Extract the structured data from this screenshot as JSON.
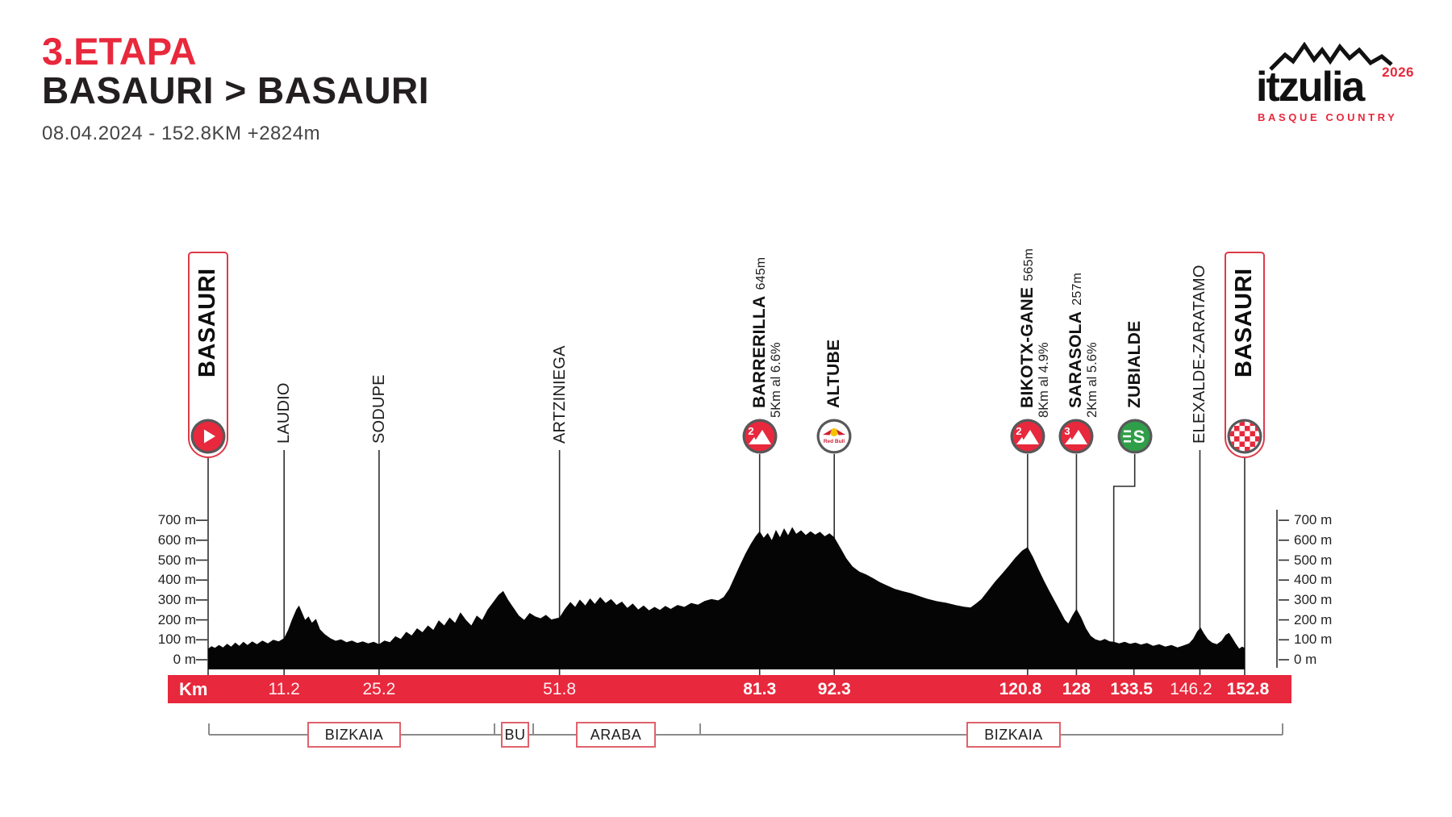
{
  "header": {
    "stage": "3.ETAPA",
    "route": "BASAURI &gt; BASAURI",
    "route_plain": "BASAURI > BASAURI",
    "details": "08.04.2024 - 152.8KM  +2824m"
  },
  "logo": {
    "name": "itzulia",
    "year": "2026",
    "subtitle": "BASQUE COUNTRY"
  },
  "colors": {
    "accent_red": "#e8283c",
    "box_border_red": "#e0626c",
    "sprint_green": "#2f9e48",
    "ring_gray": "#57585a",
    "feed_yellow": "#f6c200",
    "profile_black": "#050505",
    "line_gray": "#2e2e2e",
    "region_gray": "#8c8c8c"
  },
  "axis": {
    "elevation_labels": [
      "700 m",
      "600 m",
      "500 m",
      "400 m",
      "300 m",
      "200 m",
      "100 m",
      "0 m"
    ],
    "elevation_values": [
      700,
      600,
      500,
      400,
      300,
      200,
      100,
      0
    ],
    "km_unit_label": "Km"
  },
  "km_axis": {
    "ticks": [
      {
        "label": "11.2",
        "km": 11.2,
        "major": false,
        "dx": 0
      },
      {
        "label": "25.2",
        "km": 25.2,
        "major": false,
        "dx": 0
      },
      {
        "label": "51.8",
        "km": 51.8,
        "major": false,
        "dx": 0
      },
      {
        "label": "81.3",
        "km": 81.3,
        "major": true,
        "dx": 0
      },
      {
        "label": "92.3",
        "km": 92.3,
        "major": true,
        "dx": 0
      },
      {
        "label": "120.8",
        "km": 120.8,
        "major": true,
        "dx": -9
      },
      {
        "label": "128",
        "km": 128,
        "major": true,
        "dx": 0
      },
      {
        "label": "133.5",
        "km": 133.5,
        "major": true,
        "dx": 22
      },
      {
        "label": "146.2",
        "km": 146.2,
        "major": false,
        "dx": -11
      },
      {
        "label": "152.8",
        "km": 152.8,
        "major": true,
        "dx": 4
      }
    ]
  },
  "waypoints": [
    {
      "name": "BASAURI",
      "km": 0,
      "kind": "start"
    },
    {
      "name": "LAUDIO",
      "km": 11.2,
      "kind": "town"
    },
    {
      "name": "SODUPE",
      "km": 25.2,
      "kind": "town"
    },
    {
      "name": "ARTZINIEGA",
      "km": 51.8,
      "kind": "town"
    },
    {
      "name": "BARRERILLA",
      "km": 81.3,
      "kind": "climb",
      "category": "2",
      "elevation_label": "645m",
      "gradient_label": "5Km al 6.6%"
    },
    {
      "name": "ALTUBE",
      "km": 92.3,
      "kind": "feed",
      "icon_label": "Red Bull"
    },
    {
      "name": "BIKOTX-GANE",
      "km": 120.8,
      "kind": "climb",
      "category": "2",
      "elevation_label": "565m",
      "gradient_label": "8Km al 4.9%"
    },
    {
      "name": "SARASOLA",
      "km": 128,
      "kind": "climb",
      "category": "3",
      "elevation_label": "257m",
      "gradient_label": "2Km al 5.6%"
    },
    {
      "name": "ZUBIALDE",
      "km": 133.5,
      "kind": "sprint",
      "icon_dx": 26
    },
    {
      "name": "ELEXALDE-ZARATAMO",
      "km": 146.2,
      "kind": "town"
    },
    {
      "name": "BASAURI",
      "km": 152.8,
      "kind": "finish"
    }
  ],
  "regions": {
    "labels": [
      "BIZKAIA",
      "BU",
      "ARABA",
      "BIZKAIA"
    ]
  },
  "chart_data": {
    "type": "area",
    "title": "3.ETAPA BASAURI > BASAURI elevation profile",
    "xlabel": "Km",
    "ylabel": "m",
    "x_range": [
      0,
      152.8
    ],
    "y_range": [
      0,
      700
    ],
    "total_distance_km": 152.8,
    "total_climb_m": 2824,
    "date": "08.04.2024",
    "marked_points": [
      {
        "name": "BASAURI start",
        "km": 0
      },
      {
        "name": "LAUDIO",
        "km": 11.2
      },
      {
        "name": "SODUPE",
        "km": 25.2
      },
      {
        "name": "ARTZINIEGA",
        "km": 51.8
      },
      {
        "name": "BARRERILLA cat2",
        "km": 81.3,
        "elevation_m": 645
      },
      {
        "name": "ALTUBE feed",
        "km": 92.3
      },
      {
        "name": "BIKOTX-GANE cat2",
        "km": 120.8,
        "elevation_m": 565
      },
      {
        "name": "SARASOLA cat3",
        "km": 128,
        "elevation_m": 257
      },
      {
        "name": "ZUBIALDE sprint",
        "km": 133.5
      },
      {
        "name": "ELEXALDE-ZARATAMO",
        "km": 146.2
      },
      {
        "name": "BASAURI finish",
        "km": 152.8
      }
    ],
    "profile": [
      [
        0,
        55
      ],
      [
        0.5,
        68
      ],
      [
        1,
        60
      ],
      [
        1.6,
        74
      ],
      [
        2.2,
        62
      ],
      [
        2.8,
        80
      ],
      [
        3.4,
        66
      ],
      [
        4,
        86
      ],
      [
        4.6,
        70
      ],
      [
        5.2,
        90
      ],
      [
        5.8,
        74
      ],
      [
        6.5,
        92
      ],
      [
        7.2,
        78
      ],
      [
        8,
        96
      ],
      [
        8.8,
        82
      ],
      [
        9.6,
        100
      ],
      [
        10.4,
        92
      ],
      [
        11.2,
        108
      ],
      [
        11.8,
        150
      ],
      [
        12.4,
        205
      ],
      [
        13,
        252
      ],
      [
        13.4,
        272
      ],
      [
        13.8,
        240
      ],
      [
        14.3,
        200
      ],
      [
        14.8,
        218
      ],
      [
        15.3,
        186
      ],
      [
        15.9,
        205
      ],
      [
        16.5,
        152
      ],
      [
        17.2,
        128
      ],
      [
        18,
        108
      ],
      [
        18.8,
        95
      ],
      [
        19.6,
        102
      ],
      [
        20.4,
        88
      ],
      [
        21.2,
        96
      ],
      [
        22,
        84
      ],
      [
        22.8,
        92
      ],
      [
        23.6,
        82
      ],
      [
        24.4,
        90
      ],
      [
        25.2,
        78
      ],
      [
        26,
        96
      ],
      [
        26.8,
        88
      ],
      [
        27.6,
        118
      ],
      [
        28.4,
        104
      ],
      [
        29.2,
        140
      ],
      [
        30,
        122
      ],
      [
        30.8,
        158
      ],
      [
        31.6,
        138
      ],
      [
        32.4,
        172
      ],
      [
        33.2,
        150
      ],
      [
        34,
        198
      ],
      [
        34.8,
        172
      ],
      [
        35.6,
        212
      ],
      [
        36.4,
        185
      ],
      [
        37.2,
        238
      ],
      [
        38,
        200
      ],
      [
        38.8,
        172
      ],
      [
        39.6,
        222
      ],
      [
        40.4,
        200
      ],
      [
        41.2,
        252
      ],
      [
        42,
        288
      ],
      [
        42.8,
        325
      ],
      [
        43.5,
        345
      ],
      [
        44.2,
        302
      ],
      [
        45,
        262
      ],
      [
        45.8,
        222
      ],
      [
        46.6,
        200
      ],
      [
        47.4,
        235
      ],
      [
        48.2,
        218
      ],
      [
        49,
        208
      ],
      [
        49.8,
        225
      ],
      [
        50.6,
        202
      ],
      [
        51.8,
        212
      ],
      [
        52.6,
        255
      ],
      [
        53.4,
        290
      ],
      [
        54.1,
        265
      ],
      [
        54.8,
        302
      ],
      [
        55.6,
        272
      ],
      [
        56.3,
        308
      ],
      [
        57,
        280
      ],
      [
        57.8,
        315
      ],
      [
        58.6,
        285
      ],
      [
        59.4,
        305
      ],
      [
        60.2,
        275
      ],
      [
        61,
        292
      ],
      [
        61.8,
        260
      ],
      [
        62.6,
        282
      ],
      [
        63.4,
        252
      ],
      [
        64.2,
        272
      ],
      [
        65,
        248
      ],
      [
        65.8,
        265
      ],
      [
        66.6,
        250
      ],
      [
        67.4,
        270
      ],
      [
        68.2,
        255
      ],
      [
        69.2,
        275
      ],
      [
        70.2,
        265
      ],
      [
        71.2,
        285
      ],
      [
        72.2,
        276
      ],
      [
        73.2,
        295
      ],
      [
        74.2,
        305
      ],
      [
        75.2,
        298
      ],
      [
        76,
        315
      ],
      [
        76.8,
        355
      ],
      [
        77.6,
        415
      ],
      [
        78.4,
        475
      ],
      [
        79.2,
        532
      ],
      [
        80,
        582
      ],
      [
        80.7,
        620
      ],
      [
        81.3,
        645
      ],
      [
        81.9,
        612
      ],
      [
        82.5,
        636
      ],
      [
        83.1,
        600
      ],
      [
        83.7,
        652
      ],
      [
        84.3,
        615
      ],
      [
        84.9,
        660
      ],
      [
        85.5,
        625
      ],
      [
        86.1,
        666
      ],
      [
        86.7,
        632
      ],
      [
        87.4,
        650
      ],
      [
        88.1,
        626
      ],
      [
        88.8,
        645
      ],
      [
        89.5,
        628
      ],
      [
        90.2,
        642
      ],
      [
        90.9,
        620
      ],
      [
        91.6,
        635
      ],
      [
        92.3,
        615
      ],
      [
        93.2,
        562
      ],
      [
        94.1,
        508
      ],
      [
        95,
        468
      ],
      [
        96,
        442
      ],
      [
        97,
        428
      ],
      [
        98,
        410
      ],
      [
        99,
        390
      ],
      [
        100,
        374
      ],
      [
        101.2,
        356
      ],
      [
        102.4,
        344
      ],
      [
        103.6,
        334
      ],
      [
        104.8,
        320
      ],
      [
        106,
        306
      ],
      [
        107.4,
        294
      ],
      [
        108.8,
        286
      ],
      [
        110.2,
        274
      ],
      [
        111.4,
        266
      ],
      [
        112.4,
        262
      ],
      [
        113.2,
        282
      ],
      [
        114,
        305
      ],
      [
        115,
        348
      ],
      [
        116,
        392
      ],
      [
        117,
        430
      ],
      [
        118,
        470
      ],
      [
        119,
        512
      ],
      [
        120,
        548
      ],
      [
        120.8,
        565
      ],
      [
        121.6,
        515
      ],
      [
        122.4,
        455
      ],
      [
        123.2,
        398
      ],
      [
        124,
        345
      ],
      [
        124.8,
        295
      ],
      [
        125.6,
        245
      ],
      [
        126.3,
        200
      ],
      [
        126.8,
        182
      ],
      [
        127.4,
        222
      ],
      [
        128,
        255
      ],
      [
        128.7,
        212
      ],
      [
        129.4,
        158
      ],
      [
        130.1,
        120
      ],
      [
        130.8,
        102
      ],
      [
        131.5,
        95
      ],
      [
        132.2,
        104
      ],
      [
        132.9,
        92
      ],
      [
        133.5,
        90
      ],
      [
        134.3,
        82
      ],
      [
        135.1,
        90
      ],
      [
        135.9,
        80
      ],
      [
        136.7,
        86
      ],
      [
        137.5,
        76
      ],
      [
        138.4,
        84
      ],
      [
        139.3,
        70
      ],
      [
        140.2,
        78
      ],
      [
        141.1,
        66
      ],
      [
        142,
        74
      ],
      [
        142.9,
        62
      ],
      [
        143.8,
        72
      ],
      [
        144.6,
        82
      ],
      [
        145.2,
        105
      ],
      [
        145.8,
        142
      ],
      [
        146.3,
        162
      ],
      [
        146.8,
        132
      ],
      [
        147.4,
        102
      ],
      [
        148,
        86
      ],
      [
        148.7,
        78
      ],
      [
        149.4,
        95
      ],
      [
        150,
        125
      ],
      [
        150.5,
        135
      ],
      [
        151,
        108
      ],
      [
        151.5,
        80
      ],
      [
        152,
        56
      ],
      [
        152.4,
        66
      ],
      [
        152.8,
        60
      ]
    ]
  }
}
